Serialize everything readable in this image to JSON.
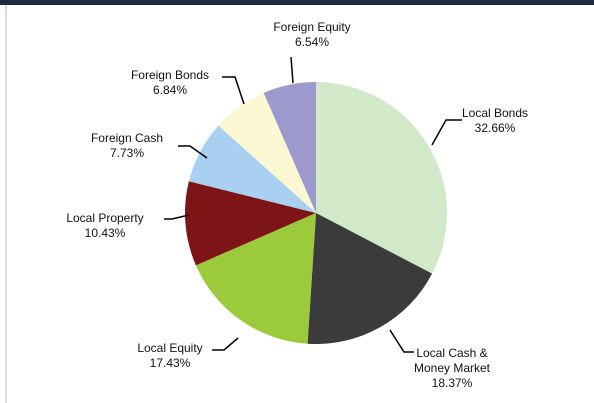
{
  "chart_data": {
    "type": "pie",
    "categories": [
      "Local Bonds",
      "Local Cash & Money Market",
      "Local Equity",
      "Local Property",
      "Foreign Cash",
      "Foreign Bonds",
      "Foreign Equity"
    ],
    "values": [
      32.66,
      18.37,
      17.43,
      10.43,
      7.73,
      6.84,
      6.54
    ],
    "value_labels": [
      "32.66%",
      "18.37%",
      "17.43%",
      "10.43%",
      "7.73%",
      "6.84%",
      "6.54%"
    ],
    "colors": [
      "#d1e8c9",
      "#3b3b3b",
      "#9bcb3d",
      "#7d1416",
      "#a9d0f0",
      "#fcf8d3",
      "#9c9acd"
    ]
  }
}
